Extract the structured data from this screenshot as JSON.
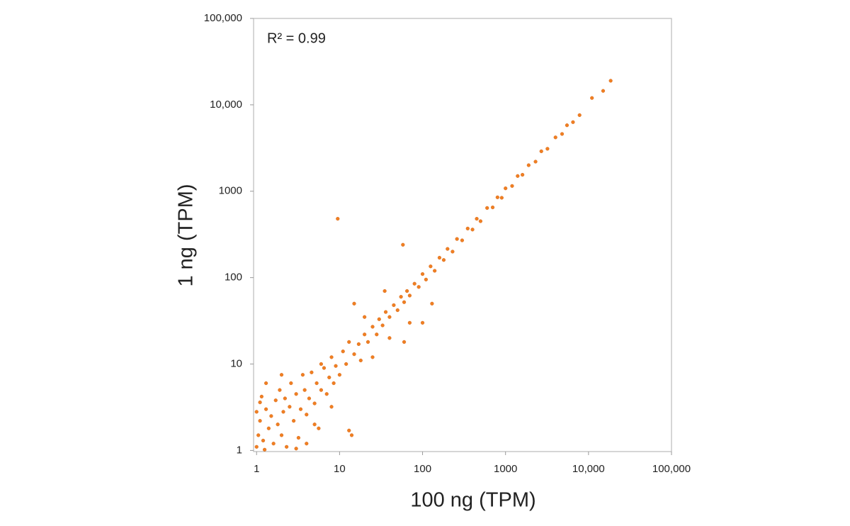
{
  "chart_data": {
    "type": "scatter",
    "annotation": "R² = 0.99",
    "x_label": "100 ng (TPM)",
    "y_label": "1 ng (TPM)",
    "log_x": true,
    "log_y": true,
    "grid": false,
    "color": "#f07f22",
    "xlim": [
      0.92,
      100000
    ],
    "ylim": [
      0.97,
      100000
    ],
    "xticks": [
      1,
      10,
      100,
      1000,
      {
        "value": 10000,
        "label": "10,000"
      },
      {
        "value": 100000,
        "label": "100,000"
      }
    ],
    "yticks": [
      1,
      10,
      100,
      1000,
      {
        "value": 10000,
        "label": "10,000"
      },
      {
        "value": 100000,
        "label": "100,000"
      }
    ],
    "x": [
      1.0,
      1.05,
      1.1,
      1.2,
      1.3,
      1.15,
      1.4,
      1.5,
      1.6,
      1.7,
      1.8,
      1.9,
      2.0,
      2.1,
      2.2,
      2.3,
      2.5,
      2.6,
      2.8,
      3.0,
      3.2,
      3.4,
      3.6,
      3.8,
      4.0,
      4.3,
      4.6,
      5.0,
      5.3,
      5.6,
      6.0,
      6.5,
      7.0,
      7.5,
      8.0,
      8.5,
      9.0,
      10,
      11,
      12,
      13,
      14,
      13,
      15,
      17,
      18,
      20,
      22,
      25,
      28,
      30,
      33,
      36,
      40,
      45,
      50,
      55,
      60,
      60,
      58,
      9.5,
      65,
      70,
      80,
      90,
      100,
      100,
      110,
      130,
      125,
      140,
      160,
      180,
      200,
      230,
      260,
      300,
      350,
      400,
      450,
      500,
      600,
      700,
      800,
      900,
      1000,
      1200,
      1400,
      1600,
      1900,
      2300,
      2700,
      3200,
      4000,
      4800,
      5500,
      6500,
      7800,
      11000,
      15000,
      18500,
      1.0,
      1.1,
      1.3,
      2.0,
      4,
      5,
      3,
      1.25,
      8,
      6,
      20,
      25,
      40,
      35,
      15,
      70
    ],
    "values": [
      1.1,
      1.5,
      2.2,
      1.3,
      3.0,
      4.2,
      1.8,
      2.5,
      1.2,
      3.8,
      2.0,
      5.0,
      1.5,
      2.8,
      4.0,
      1.1,
      3.2,
      6.0,
      2.2,
      4.5,
      1.4,
      3.0,
      7.5,
      5.0,
      2.6,
      4.0,
      8.0,
      3.5,
      6.0,
      1.8,
      5.0,
      9.0,
      4.5,
      7.0,
      12,
      6.0,
      9.5,
      7.5,
      14,
      10,
      1.7,
      1.5,
      18,
      13,
      17,
      11,
      22,
      18,
      27,
      22,
      33,
      28,
      40,
      35,
      48,
      42,
      60,
      52,
      18,
      240,
      480,
      70,
      62,
      85,
      78,
      110,
      30,
      95,
      50,
      135,
      120,
      170,
      160,
      215,
      200,
      280,
      270,
      370,
      360,
      480,
      450,
      640,
      650,
      850,
      840,
      1080,
      1150,
      1500,
      1550,
      2000,
      2200,
      2900,
      3100,
      4200,
      4600,
      5800,
      6300,
      7600,
      12000,
      14500,
      19000,
      2.8,
      3.6,
      6.0,
      7.5,
      1.2,
      2.0,
      1.05,
      1.02,
      3.2,
      10,
      35,
      12,
      20,
      70,
      50,
      30
    ]
  }
}
